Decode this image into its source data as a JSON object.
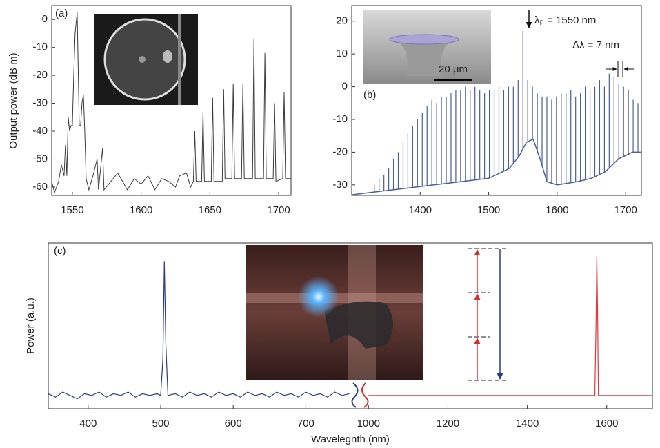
{
  "chart_data": [
    {
      "type": "line",
      "label": "(a)",
      "y_label": "Output power (dB m)",
      "xlim": [
        1535,
        1709
      ],
      "xticks": [
        1550,
        1600,
        1650,
        1700
      ],
      "ylim": [
        -63,
        5
      ],
      "yticks": [
        0,
        -10,
        -20,
        -30,
        -40,
        -50,
        -60
      ],
      "series": [
        {
          "color": "#3a3a3a",
          "x": [
            1535,
            1537,
            1540,
            1542,
            1544,
            1545,
            1546,
            1547,
            1548,
            1549,
            1550,
            1551,
            1552,
            1553.5,
            1555,
            1556,
            1557,
            1558,
            1559,
            1560,
            1562,
            1565,
            1568,
            1569,
            1572,
            1573,
            1578,
            1583,
            1590,
            1595,
            1600,
            1605,
            1610,
            1615,
            1620,
            1625,
            1628,
            1633,
            1636,
            1638,
            1639,
            1640,
            1644,
            1645,
            1646,
            1651,
            1652,
            1653,
            1659,
            1660,
            1661,
            1666,
            1667,
            1668,
            1673,
            1674,
            1675,
            1681,
            1682,
            1683,
            1689,
            1690,
            1691,
            1696,
            1697,
            1698,
            1703,
            1704,
            1705,
            1709
          ],
          "values": [
            -58,
            -62,
            -58,
            -52,
            -56,
            -45,
            -56,
            -35,
            -40,
            -38,
            -38,
            -20,
            -5,
            2.5,
            -38,
            -38,
            -30,
            -27,
            -40,
            -57,
            -61,
            -56,
            -50,
            -61,
            -46,
            -61,
            -58,
            -55,
            -61,
            -57,
            -59,
            -56,
            -61,
            -57,
            -58,
            -60,
            -56,
            -55,
            -60,
            -58,
            -40,
            -58,
            -58,
            -33,
            -58,
            -58,
            -28,
            -58,
            -58,
            -25,
            -57,
            -57,
            -23,
            -57,
            -57,
            -23,
            -57,
            -57,
            -7,
            -57,
            -57,
            -12,
            -57,
            -57,
            -30,
            -58,
            -57,
            -26,
            -57,
            -57
          ]
        }
      ]
    },
    {
      "type": "comb",
      "label": "(b)",
      "xlim": [
        1300,
        1723
      ],
      "xticks": [
        1400,
        1500,
        1600,
        1700
      ],
      "ylim": [
        -33.2,
        24.8
      ],
      "yticks": [
        20,
        10,
        0,
        -10,
        -20,
        -30
      ],
      "color": "#4b5d96",
      "pump_label": "λₚ = 1550 nm",
      "spacing_label": "Δλ = 7 nm",
      "scale_label": "20 μm",
      "background": {
        "x": [
          1300,
          1340,
          1380,
          1420,
          1460,
          1500,
          1530,
          1545,
          1555,
          1565,
          1575,
          1585,
          1600,
          1630,
          1650,
          1670,
          1690,
          1710,
          1723
        ],
        "values": [
          -33,
          -32,
          -31,
          -30,
          -29,
          -28,
          -25,
          -21,
          -17,
          -16,
          -22,
          -29,
          -30,
          -29,
          -28,
          -26,
          -22,
          -20,
          -20
        ]
      },
      "peaks": {
        "x": [
          1333,
          1340,
          1347,
          1354,
          1361,
          1368,
          1375,
          1382,
          1389,
          1396,
          1403,
          1410,
          1417,
          1424,
          1431,
          1438,
          1445,
          1452,
          1459,
          1466,
          1473,
          1480,
          1487,
          1494,
          1501,
          1508,
          1515,
          1522,
          1529,
          1536,
          1543,
          1550,
          1557,
          1564,
          1571,
          1578,
          1585,
          1592,
          1599,
          1606,
          1613,
          1620,
          1627,
          1634,
          1641,
          1648,
          1655,
          1662,
          1669,
          1676,
          1683,
          1690,
          1697,
          1704,
          1711,
          1718
        ],
        "values": [
          -30,
          -28,
          -27,
          -25,
          -22,
          -20,
          -17,
          -14,
          -12,
          -10,
          -8,
          -6,
          -4,
          -5,
          -3,
          -3,
          -2,
          -1,
          -1,
          0,
          -1,
          0,
          -1,
          -2,
          -1,
          -1,
          0,
          -1,
          0,
          0,
          2,
          17,
          2,
          0,
          -2,
          -3,
          -3,
          -4,
          -3,
          -2,
          -2,
          -1,
          -3,
          -2,
          0,
          -1,
          0,
          2,
          0,
          4,
          3,
          1,
          0,
          -1,
          -4,
          -5
        ]
      }
    },
    {
      "type": "broken-line",
      "label": "(c)",
      "x_label": "Wavelegnth (nm)",
      "y_label": "Power (a.u.)",
      "ylim": [
        0,
        1
      ],
      "segments": [
        {
          "xlim": [
            345,
            770
          ],
          "xticks": [
            400,
            500,
            600,
            700
          ],
          "series": [
            {
              "color": "#2b3a8c",
              "x": [
                345,
                355,
                365,
                375,
                385,
                395,
                405,
                415,
                425,
                435,
                445,
                455,
                465,
                475,
                485,
                495,
                500,
                503,
                505,
                507,
                510,
                520,
                530,
                540,
                550,
                560,
                570,
                580,
                590,
                600,
                610,
                620,
                630,
                640,
                650,
                660,
                670,
                680,
                690,
                700,
                710,
                720,
                730,
                740,
                750,
                760
              ],
              "values": [
                0.09,
                0.07,
                0.1,
                0.08,
                0.06,
                0.09,
                0.08,
                0.1,
                0.07,
                0.09,
                0.08,
                0.1,
                0.07,
                0.09,
                0.08,
                0.09,
                0.08,
                0.3,
                0.89,
                0.4,
                0.08,
                0.09,
                0.07,
                0.1,
                0.08,
                0.09,
                0.07,
                0.1,
                0.08,
                0.09,
                0.07,
                0.1,
                0.08,
                0.09,
                0.07,
                0.1,
                0.08,
                0.09,
                0.07,
                0.1,
                0.08,
                0.09,
                0.07,
                0.1,
                0.08,
                0.09
              ]
            }
          ]
        },
        {
          "xlim": [
            970,
            1715
          ],
          "xticks": [
            1000,
            1200,
            1400,
            1600
          ],
          "series": [
            {
              "color": "#e0393e",
              "x": [
                1000,
                1200,
                1400,
                1570,
                1573,
                1575,
                1577,
                1579,
                1715
              ],
              "values": [
                0.08,
                0.08,
                0.08,
                0.08,
                0.5,
                0.92,
                0.6,
                0.08,
                0.08
              ]
            }
          ]
        }
      ]
    }
  ]
}
